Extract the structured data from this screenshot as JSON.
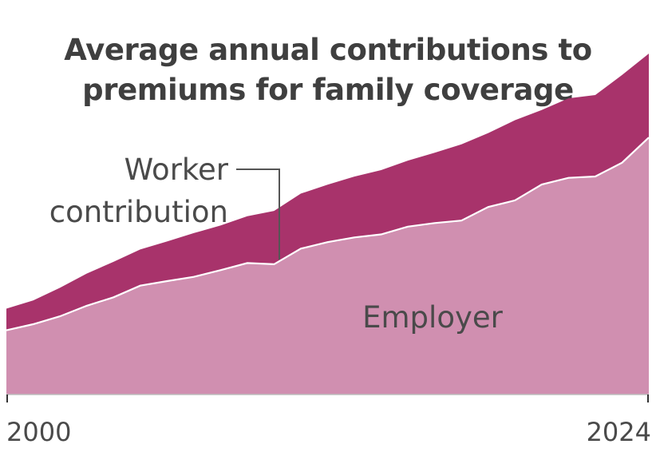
{
  "chart_data": {
    "type": "area",
    "stacked": true,
    "title_lines": [
      "Average annual contributions to",
      "premiums for family coverage"
    ],
    "x": [
      2000,
      2001,
      2002,
      2003,
      2004,
      2005,
      2006,
      2007,
      2008,
      2009,
      2010,
      2011,
      2012,
      2013,
      2014,
      2015,
      2016,
      2017,
      2018,
      2019,
      2020,
      2021,
      2022,
      2023,
      2024
    ],
    "xlim": [
      2000,
      2024
    ],
    "ylim": [
      0,
      26000
    ],
    "x_tick_labels": [
      "2000",
      "2024"
    ],
    "series": [
      {
        "name": "Employer",
        "color": "#d08fb0",
        "values": [
          4819,
          5269,
          5866,
          6657,
          7289,
          8167,
          8508,
          8824,
          9325,
          9860,
          9773,
          10944,
          11429,
          11786,
          12011,
          12591,
          12865,
          13049,
          14069,
          14561,
          15754,
          16253,
          16357,
          17393,
          19276
        ]
      },
      {
        "name": "Worker contribution",
        "color": "#a8336b",
        "values": [
          1619,
          1787,
          2137,
          2412,
          2661,
          2713,
          2973,
          3281,
          3354,
          3515,
          3997,
          4129,
          4316,
          4565,
          4823,
          4955,
          5277,
          5714,
          5547,
          6015,
          5588,
          5969,
          6106,
          6575,
          6296
        ]
      }
    ],
    "labels": {
      "worker": [
        "Worker",
        "contribution"
      ],
      "employer": "Employer"
    },
    "grid": false,
    "legend": "none"
  }
}
